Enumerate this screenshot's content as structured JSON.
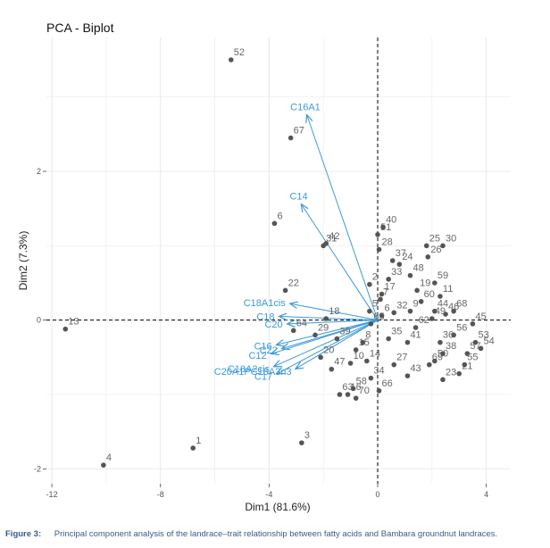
{
  "chart_data": {
    "type": "scatter",
    "title": "PCA - Biplot",
    "xlabel": "Dim1 (81.6%)",
    "ylabel": "Dim2 (7.3%)",
    "xlim": [
      -12.2,
      4.9
    ],
    "ylim": [
      -2.2,
      3.8
    ],
    "xticks": [
      -12,
      -8,
      -4,
      0,
      4
    ],
    "yticks": [
      -2,
      0,
      2
    ],
    "xtick_labels": [
      "-12",
      "-8",
      "-4",
      "0",
      "4"
    ],
    "ytick_labels": [
      "-2",
      "0",
      "2"
    ],
    "grid": true,
    "reference_lines": {
      "x": 0,
      "y": 0
    },
    "points": [
      {
        "label": "52",
        "x": -5.4,
        "y": 3.5
      },
      {
        "label": "67",
        "x": -3.2,
        "y": 2.45
      },
      {
        "label": "6",
        "x": -3.8,
        "y": 1.3
      },
      {
        "label": "31",
        "x": -2.0,
        "y": 1.0
      },
      {
        "label": "42",
        "x": -1.9,
        "y": 1.03
      },
      {
        "label": "22",
        "x": -3.4,
        "y": 0.4
      },
      {
        "label": "18",
        "x": -1.9,
        "y": 0.02
      },
      {
        "label": "64",
        "x": -3.1,
        "y": -0.14
      },
      {
        "label": "13",
        "x": -11.5,
        "y": -0.12
      },
      {
        "label": "4",
        "x": -10.1,
        "y": -1.95
      },
      {
        "label": "1",
        "x": -6.8,
        "y": -1.72
      },
      {
        "label": "3",
        "x": -2.8,
        "y": -1.65
      },
      {
        "label": "63",
        "x": -1.4,
        "y": -1.0
      },
      {
        "label": "16",
        "x": -1.1,
        "y": -1.0
      },
      {
        "label": "58",
        "x": -0.9,
        "y": -0.92
      },
      {
        "label": "70",
        "x": -0.8,
        "y": -1.05
      },
      {
        "label": "47",
        "x": -1.7,
        "y": -0.66
      },
      {
        "label": "20",
        "x": -2.1,
        "y": -0.5
      },
      {
        "label": "39",
        "x": -1.5,
        "y": -0.25
      },
      {
        "label": "29",
        "x": -2.3,
        "y": -0.2
      },
      {
        "label": "10",
        "x": -1.0,
        "y": -0.58
      },
      {
        "label": "34",
        "x": -0.25,
        "y": -0.78
      },
      {
        "label": "66",
        "x": 0.05,
        "y": -0.95
      },
      {
        "label": "15",
        "x": -0.8,
        "y": -0.4
      },
      {
        "label": "14",
        "x": -0.4,
        "y": -0.55
      },
      {
        "label": "8",
        "x": -0.55,
        "y": -0.3
      },
      {
        "label": "65",
        "x": -0.25,
        "y": -0.05
      },
      {
        "label": "5",
        "x": -0.3,
        "y": 0.12
      },
      {
        "label": "6",
        "x": 0.15,
        "y": 0.06
      },
      {
        "label": "7",
        "x": 0.1,
        "y": 0.28
      },
      {
        "label": "2",
        "x": -0.3,
        "y": 0.48
      },
      {
        "label": "51",
        "x": 0.0,
        "y": 1.15
      },
      {
        "label": "40",
        "x": 0.2,
        "y": 1.25
      },
      {
        "label": "28",
        "x": 0.05,
        "y": 0.95
      },
      {
        "label": "37",
        "x": 0.55,
        "y": 0.8
      },
      {
        "label": "33",
        "x": 0.4,
        "y": 0.55
      },
      {
        "label": "32",
        "x": 0.6,
        "y": 0.1
      },
      {
        "label": "17",
        "x": 0.15,
        "y": 0.35
      },
      {
        "label": "27",
        "x": 0.6,
        "y": -0.6
      },
      {
        "label": "35",
        "x": 0.4,
        "y": -0.25
      },
      {
        "label": "41",
        "x": 1.1,
        "y": -0.3
      },
      {
        "label": "43",
        "x": 1.1,
        "y": -0.75
      },
      {
        "label": "69",
        "x": 1.9,
        "y": -0.6
      },
      {
        "label": "23",
        "x": 2.4,
        "y": -0.8
      },
      {
        "label": "50",
        "x": 2.1,
        "y": -0.55
      },
      {
        "label": "21",
        "x": 3.0,
        "y": -0.72
      },
      {
        "label": "38",
        "x": 2.4,
        "y": -0.45
      },
      {
        "label": "36",
        "x": 2.3,
        "y": -0.3
      },
      {
        "label": "62",
        "x": 1.4,
        "y": -0.1
      },
      {
        "label": "57",
        "x": 3.3,
        "y": -0.45
      },
      {
        "label": "55",
        "x": 3.2,
        "y": -0.6
      },
      {
        "label": "54",
        "x": 3.8,
        "y": -0.38
      },
      {
        "label": "53",
        "x": 3.6,
        "y": -0.3
      },
      {
        "label": "56",
        "x": 2.8,
        "y": -0.2
      },
      {
        "label": "45",
        "x": 3.5,
        "y": -0.05
      },
      {
        "label": "46",
        "x": 2.5,
        "y": 0.08
      },
      {
        "label": "68",
        "x": 2.8,
        "y": 0.12
      },
      {
        "label": "9",
        "x": 1.2,
        "y": 0.12
      },
      {
        "label": "49",
        "x": 2.0,
        "y": 0.02
      },
      {
        "label": "44",
        "x": 2.1,
        "y": 0.12
      },
      {
        "label": "11",
        "x": 2.3,
        "y": 0.32
      },
      {
        "label": "19",
        "x": 1.45,
        "y": 0.4
      },
      {
        "label": "60",
        "x": 1.6,
        "y": 0.25
      },
      {
        "label": "59",
        "x": 2.1,
        "y": 0.5
      },
      {
        "label": "26",
        "x": 1.85,
        "y": 0.85
      },
      {
        "label": "25",
        "x": 1.8,
        "y": 1.0
      },
      {
        "label": "30",
        "x": 2.4,
        "y": 1.0
      },
      {
        "label": "24",
        "x": 0.8,
        "y": 0.75
      },
      {
        "label": "48",
        "x": 1.2,
        "y": 0.6
      }
    ],
    "vectors": [
      {
        "name": "C16A1",
        "x": -2.6,
        "y": 2.75
      },
      {
        "name": "C14",
        "x": -2.8,
        "y": 1.55
      },
      {
        "name": "C18A1cis",
        "x": -3.2,
        "y": 0.22
      },
      {
        "name": "C18",
        "x": -3.6,
        "y": 0.05
      },
      {
        "name": "C20",
        "x": -3.3,
        "y": -0.05
      },
      {
        "name": "C16",
        "x": -3.7,
        "y": -0.33
      },
      {
        "name": "C22",
        "x": -3.5,
        "y": -0.38
      },
      {
        "name": "C12",
        "x": -3.9,
        "y": -0.45
      },
      {
        "name": "C18A2cis",
        "x": -3.8,
        "y": -0.62
      },
      {
        "name": "C20A1PC18A3n3",
        "x": -3.0,
        "y": -0.65
      },
      {
        "name": "C17",
        "x": -3.7,
        "y": -0.72
      }
    ]
  },
  "caption": {
    "figure_label": "Figure 3:",
    "text": "Principal component analysis of the landrace–trait relationship between fatty acids and Bambara groundnut landraces."
  },
  "colors": {
    "points": "#555555",
    "point_labels": "#666666",
    "vectors": "#3b9ad9",
    "grid": "#ebebeb",
    "caption": "#3a5a8a"
  }
}
